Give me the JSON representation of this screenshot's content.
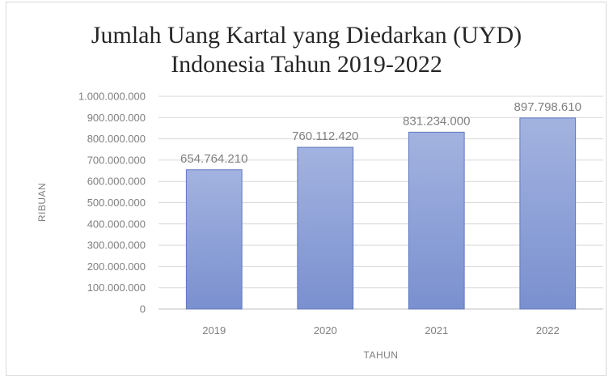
{
  "chart_data": {
    "type": "bar",
    "title_line1": "Jumlah Uang Kartal yang Diedarkan (UYD)",
    "title_line2": "Indonesia Tahun 2019-2022",
    "xlabel": "TAHUN",
    "ylabel": "RIBUAN",
    "categories": [
      "2019",
      "2020",
      "2021",
      "2022"
    ],
    "values": [
      654764210,
      760112420,
      831234000,
      897798610
    ],
    "value_labels": [
      "654.764.210",
      "760.112.420",
      "831.234.000",
      "897.798.610"
    ],
    "ylim": [
      0,
      1000000000
    ],
    "yticks": [
      0,
      100000000,
      200000000,
      300000000,
      400000000,
      500000000,
      600000000,
      700000000,
      800000000,
      900000000,
      1000000000
    ],
    "ytick_labels": [
      "0",
      "100.000.000",
      "200.000.000",
      "300.000.000",
      "400.000.000",
      "500.000.000",
      "600.000.000",
      "700.000.000",
      "800.000.000",
      "900.000.000",
      "1.000.000.000"
    ],
    "grid": true,
    "legend": "none",
    "colors": {
      "bar_top": "#a3b3e0",
      "bar_bottom": "#7a90cf",
      "bar_edge": "#5f78c0"
    }
  }
}
